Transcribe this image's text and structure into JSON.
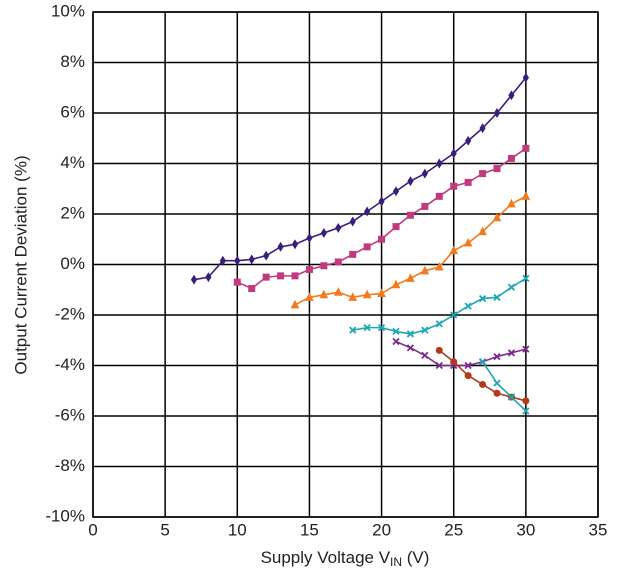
{
  "chart_data": {
    "type": "line",
    "x_label": [
      "Supply Voltage V",
      "IN",
      " (V)"
    ],
    "y_label": "Output Current Deviation (%)",
    "xlim": [
      0,
      35
    ],
    "xticks": [
      0,
      5,
      10,
      15,
      20,
      25,
      30,
      35
    ],
    "ylim": [
      -10,
      10
    ],
    "yticks": [
      {
        "value": -10,
        "label": "-10%"
      },
      {
        "value": -8,
        "label": "-8%"
      },
      {
        "value": -6,
        "label": "-6%"
      },
      {
        "value": -4,
        "label": "-4%"
      },
      {
        "value": -2,
        "label": "-2%"
      },
      {
        "value": 0,
        "label": "0%"
      },
      {
        "value": 2,
        "label": "2%"
      },
      {
        "value": 4,
        "label": "4%"
      },
      {
        "value": 6,
        "label": "6%"
      },
      {
        "value": 8,
        "label": "8%"
      },
      {
        "value": 10,
        "label": "10%"
      }
    ],
    "grid": true,
    "series": [
      {
        "color": "#3a1e7c",
        "marker": "diamond",
        "x": [
          7,
          8,
          9,
          10,
          11,
          12,
          13,
          14,
          15,
          16,
          17,
          18,
          19,
          20,
          21,
          22,
          23,
          24,
          25,
          26,
          27,
          28,
          29,
          30
        ],
        "values": [
          -0.6,
          -0.5,
          0.15,
          0.15,
          0.2,
          0.35,
          0.7,
          0.8,
          1.05,
          1.25,
          1.45,
          1.7,
          2.1,
          2.5,
          2.9,
          3.3,
          3.6,
          4.0,
          4.4,
          4.9,
          5.4,
          6.0,
          6.7,
          7.4
        ]
      },
      {
        "color": "#c23a7e",
        "marker": "square",
        "x": [
          10,
          11,
          12,
          13,
          14,
          15,
          16,
          17,
          18,
          19,
          20,
          21,
          22,
          23,
          24,
          25,
          26,
          27,
          28,
          29,
          30
        ],
        "values": [
          -0.7,
          -0.95,
          -0.5,
          -0.45,
          -0.45,
          -0.2,
          -0.05,
          0.1,
          0.4,
          0.7,
          1.0,
          1.5,
          1.95,
          2.3,
          2.7,
          3.1,
          3.25,
          3.6,
          3.8,
          4.2,
          4.6
        ]
      },
      {
        "color": "#f27a1c",
        "marker": "triangle",
        "x": [
          14,
          15,
          16,
          17,
          18,
          19,
          20,
          21,
          22,
          23,
          24,
          25,
          26,
          27,
          28,
          29,
          30
        ],
        "values": [
          -1.6,
          -1.3,
          -1.2,
          -1.1,
          -1.3,
          -1.2,
          -1.15,
          -0.8,
          -0.55,
          -0.25,
          -0.1,
          0.55,
          0.85,
          1.3,
          1.85,
          2.4,
          2.7
        ]
      },
      {
        "color": "#1ea6b2",
        "marker": "x",
        "x": [
          18,
          19,
          20,
          21,
          22,
          23,
          24,
          25,
          26,
          27,
          28,
          29,
          30
        ],
        "values": [
          -2.6,
          -2.5,
          -2.5,
          -2.65,
          -2.75,
          -2.6,
          -2.35,
          -2.0,
          -1.65,
          -1.35,
          -1.3,
          -0.9,
          -0.55
        ]
      },
      {
        "color": "#7b2c8c",
        "marker": "x",
        "x": [
          21,
          22,
          23,
          24,
          25,
          26,
          27,
          28,
          29,
          30
        ],
        "values": [
          -3.05,
          -3.3,
          -3.6,
          -4.0,
          -4.0,
          -4.0,
          -3.85,
          -3.65,
          -3.5,
          -3.35
        ]
      },
      {
        "color": "#b5381c",
        "marker": "circle",
        "x": [
          24,
          25,
          26,
          27,
          28,
          29,
          30
        ],
        "values": [
          -3.4,
          -3.85,
          -4.4,
          -4.75,
          -5.1,
          -5.25,
          -5.4
        ]
      },
      {
        "color": "#1ea6b2",
        "marker": "x",
        "x": [
          27,
          28,
          29,
          30
        ],
        "values": [
          -3.85,
          -4.7,
          -5.25,
          -5.8
        ]
      }
    ]
  }
}
